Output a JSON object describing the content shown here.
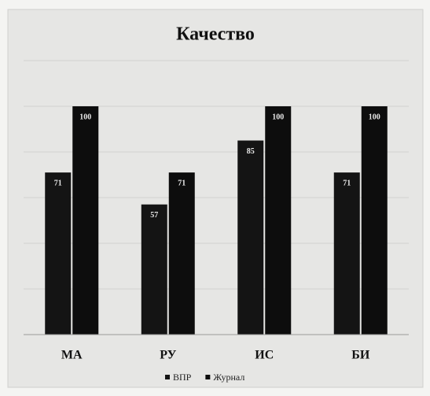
{
  "chart_data": {
    "type": "bar",
    "title": "Качество",
    "categories": [
      "МА",
      "РУ",
      "ИС",
      "БИ"
    ],
    "series": [
      {
        "name": "ВПР",
        "color": "#141414",
        "values": [
          71,
          57,
          85,
          71
        ]
      },
      {
        "name": "Журнал",
        "color": "#0d0d0d",
        "values": [
          100,
          71,
          100,
          100
        ]
      }
    ],
    "ylim": [
      0,
      120
    ],
    "yticks": [
      0,
      20,
      40,
      60,
      80,
      100,
      120
    ],
    "grid": true,
    "legend": "bottom"
  }
}
